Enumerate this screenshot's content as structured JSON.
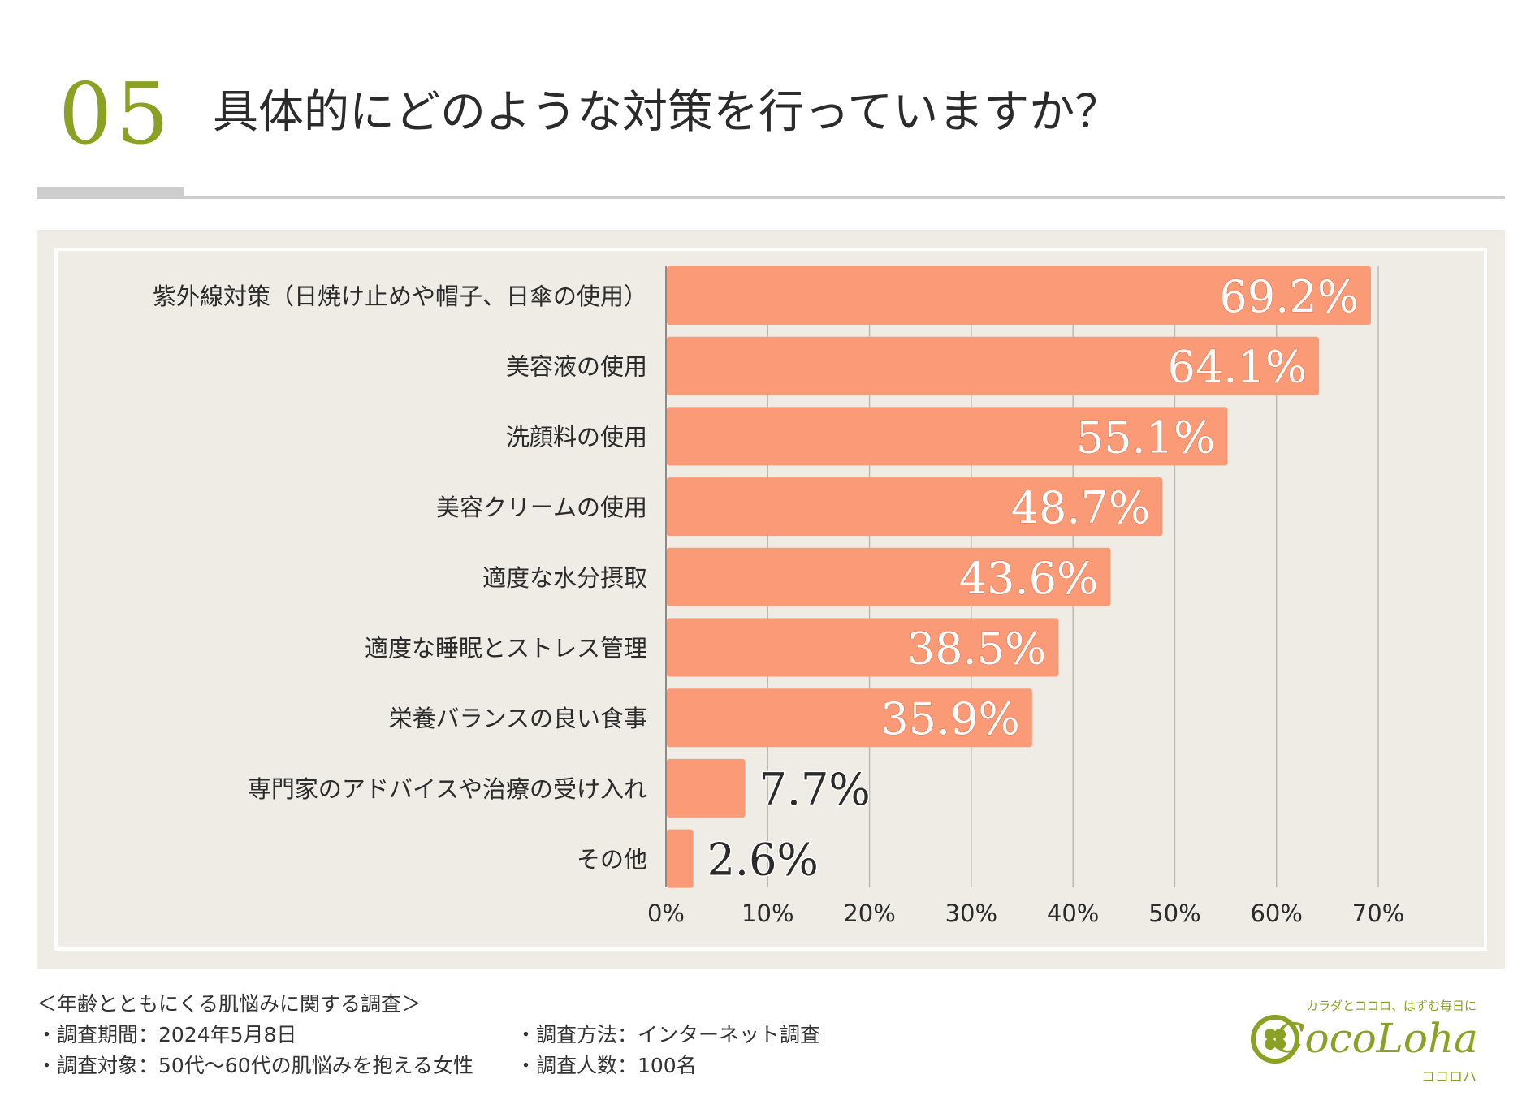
{
  "header": {
    "number": "05",
    "title": "具体的にどのような対策を行っていますか？"
  },
  "colors": {
    "accent": "#8aa124",
    "bar": "#fa9a77",
    "panel": "#efebe5",
    "grid": "#bdbab5"
  },
  "chart_data": {
    "type": "bar",
    "orientation": "horizontal",
    "categories": [
      "紫外線対策（日焼け止めや帽子、日傘の使用）",
      "美容液の使用",
      "洗顔料の使用",
      "美容クリームの使用",
      "適度な水分摂取",
      "適度な睡眠とストレス管理",
      "栄養バランスの良い食事",
      "専門家のアドバイスや治療の受け入れ",
      "その他"
    ],
    "values": [
      69.2,
      64.1,
      55.1,
      48.7,
      43.6,
      38.5,
      35.9,
      7.7,
      2.6
    ],
    "value_labels": [
      "69.2%",
      "64.1%",
      "55.1%",
      "48.7%",
      "43.6%",
      "38.5%",
      "35.9%",
      "7.7%",
      "2.6%"
    ],
    "xlim": [
      0,
      70
    ],
    "xticks": [
      "0%",
      "10%",
      "20%",
      "30%",
      "40%",
      "50%",
      "60%",
      "70%"
    ],
    "grid": true
  },
  "footer": {
    "survey_title": "＜年齢とともにくる肌悩みに関する調査＞",
    "period": "・調査期間：2024年5月8日",
    "target": "・調査対象：50代〜60代の肌悩みを抱える女性",
    "method": "・調査方法：インターネット調査",
    "count": "・調査人数：100名"
  },
  "logo": {
    "tagline": "カラダとココロ、はずむ毎日に",
    "name": "CocoLoha",
    "kana": "ココロハ"
  }
}
